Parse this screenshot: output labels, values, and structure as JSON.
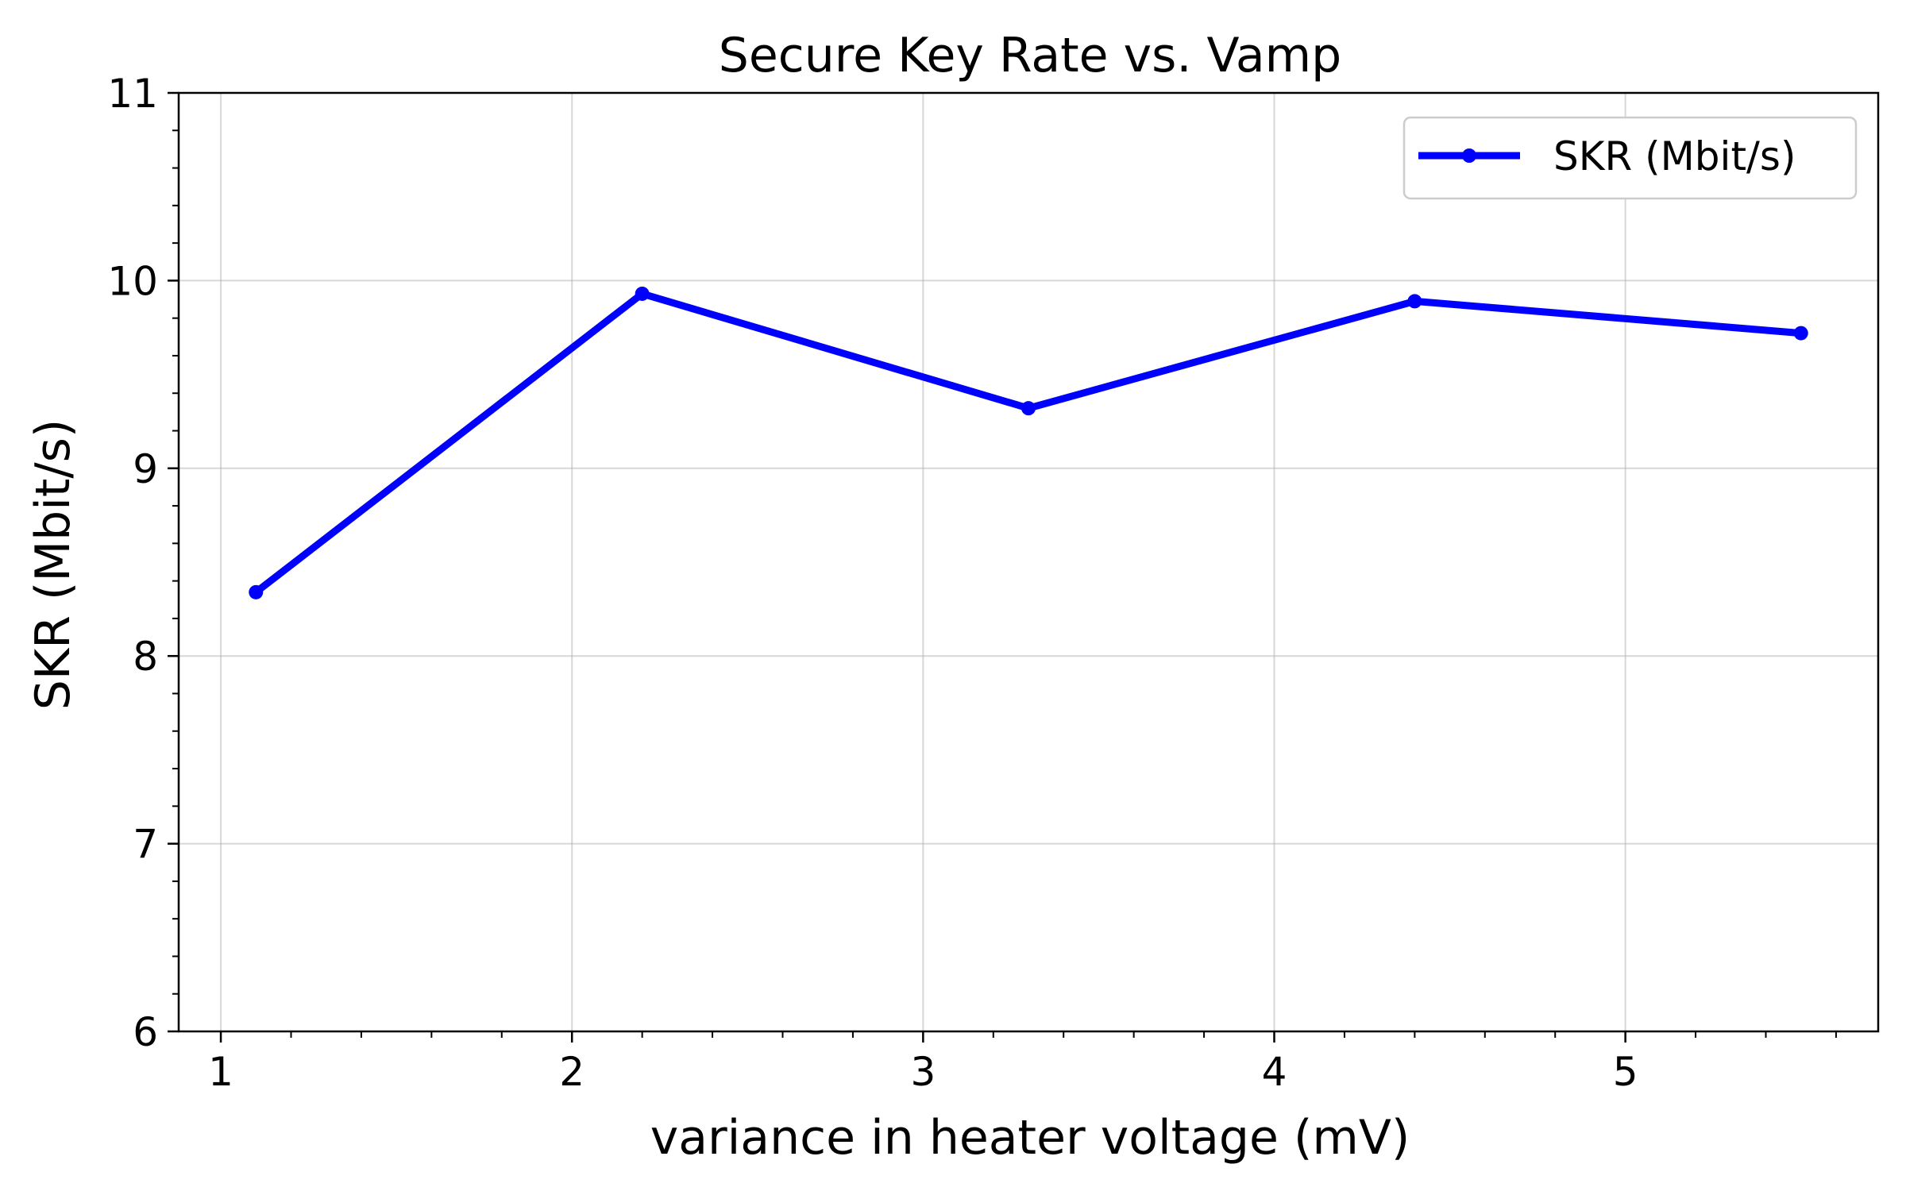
{
  "chart_data": {
    "type": "line",
    "title": "Secure Key Rate vs. Vamp",
    "xlabel": "variance in heater voltage (mV)",
    "ylabel": "SKR (Mbit/s)",
    "xlim": [
      0.88,
      5.72
    ],
    "ylim": [
      6,
      11
    ],
    "xticks": [
      1,
      2,
      3,
      4,
      5
    ],
    "yticks": [
      6,
      7,
      8,
      9,
      10,
      11
    ],
    "grid": true,
    "legend_position": "upper-right",
    "series": [
      {
        "name": "SKR (Mbit/s)",
        "color": "#0000ff",
        "marker": "circle",
        "x": [
          1.1,
          2.2,
          3.3,
          4.4,
          5.5
        ],
        "y": [
          8.34,
          9.93,
          9.32,
          9.89,
          9.72
        ]
      }
    ]
  }
}
